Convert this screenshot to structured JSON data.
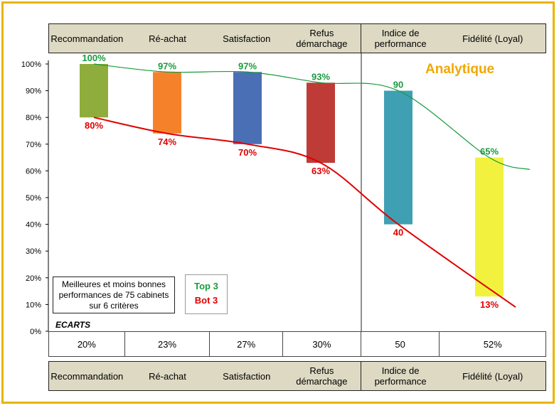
{
  "chart_data": {
    "type": "bar",
    "title": "Analytique",
    "categories": [
      "Recommandation",
      "Ré-achat",
      "Satisfaction",
      "Refus démarchage",
      "Indice de performance",
      "Fidélité (Loyal)"
    ],
    "category_lines": [
      [
        "Recommandation"
      ],
      [
        "Ré-achat"
      ],
      [
        "Satisfaction"
      ],
      [
        "Refus",
        "démarchage"
      ],
      [
        "Indice de",
        "performance"
      ],
      [
        "Fidélité (Loyal)"
      ]
    ],
    "series": [
      {
        "name": "Top 3",
        "values": [
          100,
          97,
          97,
          93,
          90,
          65
        ],
        "labels": [
          "100%",
          "97%",
          "97%",
          "93%",
          "90",
          "65%"
        ],
        "color": "#1a9a3c"
      },
      {
        "name": "Bot 3",
        "values": [
          80,
          74,
          70,
          63,
          40,
          13
        ],
        "labels": [
          "80%",
          "74%",
          "70%",
          "63%",
          "40",
          "13%"
        ],
        "color": "#e00000"
      }
    ],
    "ylim": [
      0,
      100
    ],
    "yticks": [
      "0%",
      "10%",
      "20%",
      "30%",
      "40%",
      "50%",
      "60%",
      "70%",
      "80%",
      "90%",
      "100%"
    ],
    "bar_colors": [
      "#8fad3c",
      "#f5822a",
      "#4a6fb5",
      "#be3b37",
      "#3fa0b4",
      "#f2f23e"
    ],
    "gaps_label": "ECARTS",
    "gaps": [
      "20%",
      "23%",
      "27%",
      "30%",
      "50",
      "52%"
    ],
    "legend_box_text": "Meilleures et moins bonnes performances de 75 cabinets sur 6 critères",
    "legend_top": "Top 3",
    "legend_bot": "Bot 3"
  }
}
